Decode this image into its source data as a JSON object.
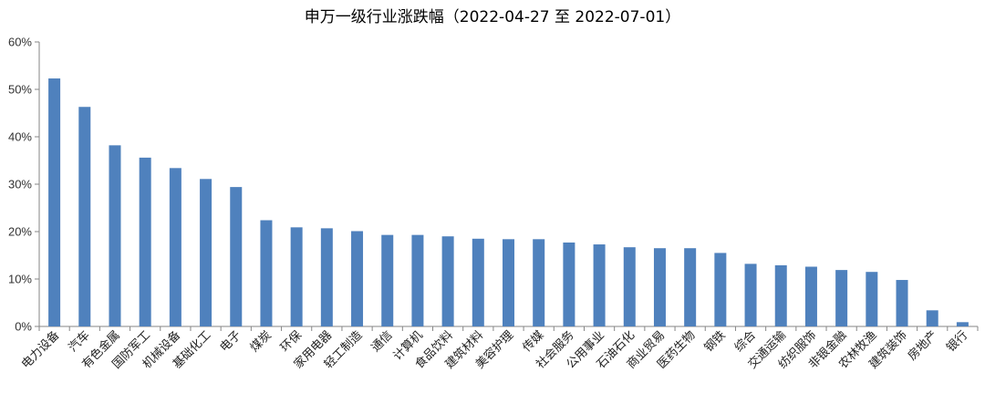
{
  "chart_data": {
    "type": "bar",
    "title": "申万一级行业涨跌幅（2022-04-27 至 2022-07-01）",
    "xlabel": "",
    "ylabel": "",
    "ylim": [
      0,
      60
    ],
    "ytick_labels": [
      "0%",
      "10%",
      "20%",
      "30%",
      "40%",
      "50%",
      "60%"
    ],
    "grid": false,
    "legend": "none",
    "bar_color": "#4f81bd",
    "categories": [
      "电力设备",
      "汽车",
      "有色金属",
      "国防军工",
      "机械设备",
      "基础化工",
      "电子",
      "煤炭",
      "环保",
      "家用电器",
      "轻工制造",
      "通信",
      "计算机",
      "食品饮料",
      "建筑材料",
      "美容护理",
      "传媒",
      "社会服务",
      "公用事业",
      "石油石化",
      "商业贸易",
      "医药生物",
      "钢铁",
      "综合",
      "交通运输",
      "纺织服饰",
      "非银金融",
      "农林牧渔",
      "建筑装饰",
      "房地产",
      "银行"
    ],
    "values": [
      52.3,
      46.3,
      38.2,
      35.6,
      33.4,
      31.1,
      29.4,
      22.4,
      20.9,
      20.7,
      20.1,
      19.3,
      19.3,
      19.0,
      18.5,
      18.4,
      18.4,
      17.7,
      17.3,
      16.7,
      16.5,
      16.5,
      15.5,
      13.2,
      12.9,
      12.6,
      11.9,
      11.5,
      9.8,
      3.4,
      0.9
    ]
  }
}
